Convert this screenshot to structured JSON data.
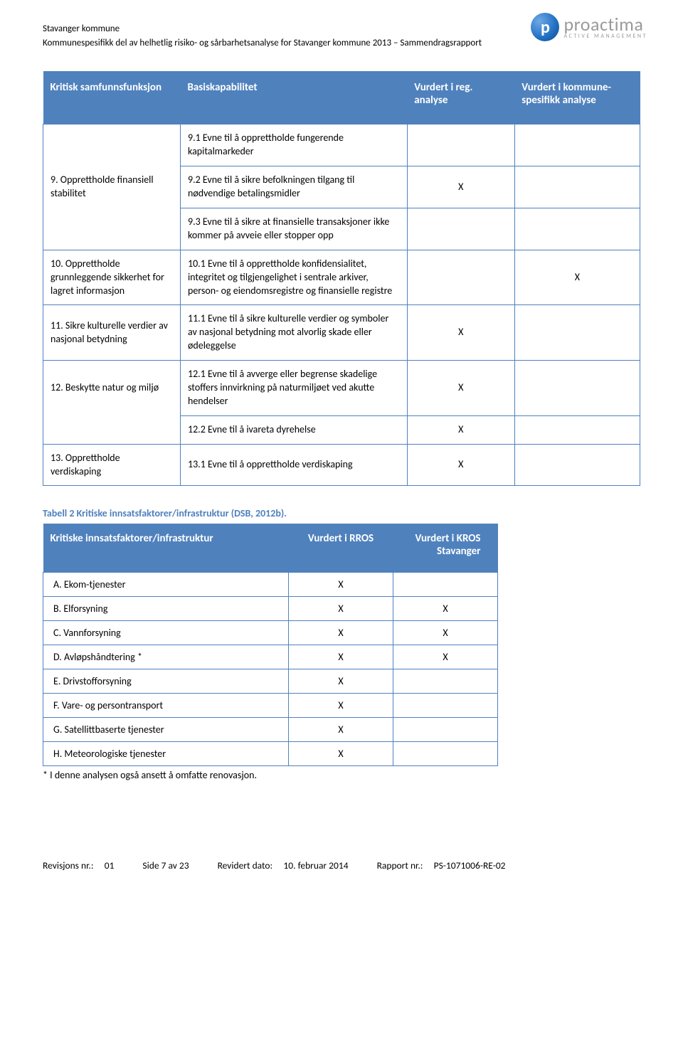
{
  "header": {
    "line1": "Stavanger kommune",
    "line2": "Kommunespesifikk del av helhetlig risiko- og sårbarhetsanalyse for Stavanger kommune 2013 – Sammendragsrapport"
  },
  "logo": {
    "glyph": "p",
    "main": "proactima",
    "sub": "ACTIVE MANAGEMENT"
  },
  "table1": {
    "headers": {
      "func": "Kritisk samfunnsfunksjon",
      "basis": "Basiskapabilitet",
      "reg": "Vurdert i reg. analyse",
      "kom": "Vurdert i kommune-spesifikk analyse"
    },
    "r1_basis": "9.1 Evne til å opprettholde fungerende kapitalmarkeder",
    "r2_func": "9.  Opprettholde finansiell stabilitet",
    "r2_basis": "9.2 Evne til å sikre befolkningen tilgang til nødvendige betalingsmidler",
    "r2_reg": "X",
    "r3_basis": "9.3 Evne til å sikre at finansielle transaksjoner ikke kommer på avveie eller stopper opp",
    "r4_func": "10. Opprettholde grunnleggende sikkerhet for lagret informasjon",
    "r4_basis": "10.1 Evne til å opprettholde konfidensialitet, integritet og tilgjengelighet i sentrale arkiver, person- og eiendomsregistre og finansielle registre",
    "r4_kom": "X",
    "r5_func": "11. Sikre kulturelle verdier av nasjonal betydning",
    "r5_basis": "11.1 Evne til å sikre kulturelle verdier og symboler av nasjonal betydning mot alvorlig skade eller ødeleggelse",
    "r5_reg": "X",
    "r6_func": "12. Beskytte natur og miljø",
    "r6_basis": "12.1 Evne til å avverge eller begrense skadelige stoffers innvirkning på naturmiljøet ved akutte hendelser",
    "r6_reg": "X",
    "r7_basis": "12.2 Evne til å ivareta dyrehelse",
    "r7_reg": "X",
    "r8_func": "13. Opprettholde verdiskaping",
    "r8_basis": "13.1 Evne til å opprettholde verdiskaping",
    "r8_reg": "X"
  },
  "caption2": "Tabell 2 Kritiske innsatsfaktorer/infrastruktur (DSB, 2012b).",
  "table2": {
    "headers": {
      "name": "Kritiske innsatsfaktorer/infrastruktur",
      "rros": "Vurdert i RROS",
      "kros": "Vurdert i KROS Stavanger"
    },
    "rows": [
      {
        "name": "A.   Ekom-tjenester",
        "rros": "X",
        "kros": ""
      },
      {
        "name": "B.   Elforsyning",
        "rros": "X",
        "kros": "X"
      },
      {
        "name": "C.   Vannforsyning",
        "rros": "X",
        "kros": "X"
      },
      {
        "name": "D.   Avløpshåndtering *",
        "rros": "X",
        "kros": "X"
      },
      {
        "name": "E.   Drivstofforsyning",
        "rros": "X",
        "kros": ""
      },
      {
        "name": "F.   Vare- og persontransport",
        "rros": "X",
        "kros": ""
      },
      {
        "name": "G.   Satellittbaserte tjenester",
        "rros": "X",
        "kros": ""
      },
      {
        "name": "H.   Meteorologiske tjenester",
        "rros": "X",
        "kros": ""
      }
    ]
  },
  "footnote": "* I denne analysen også ansett å omfatte renovasjon.",
  "footer": {
    "rev_label": "Revisjons nr.:",
    "rev_val": "01",
    "page": "Side 7 av 23",
    "date_label": "Revidert dato:",
    "date_val": "10. februar 2014",
    "rep_label": "Rapport nr.:",
    "rep_val": "PS-1071006-RE-02"
  },
  "colors": {
    "header_bg": "#4f81bd",
    "border": "#4f81bd",
    "logo_gray": "#9a9a9a"
  }
}
